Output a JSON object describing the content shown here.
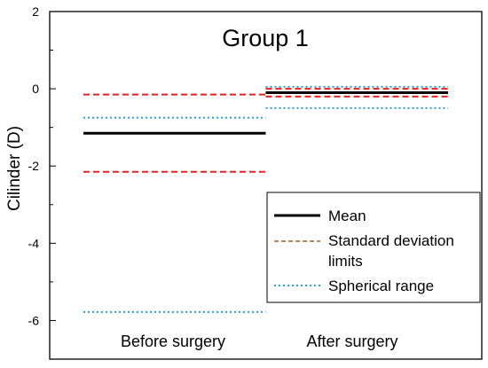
{
  "chart_data": {
    "type": "line",
    "title": "Group 1",
    "ylabel": "Cilinder (D)",
    "xlabel": "",
    "ylim": [
      -7,
      2
    ],
    "yticks": [
      2,
      0,
      -2,
      -4,
      -6
    ],
    "categories": [
      "Before surgery",
      "After surgery"
    ],
    "grid": false,
    "legend_position": "bottom-right",
    "series": [
      {
        "name": "Mean",
        "style": "solid",
        "color": "#000000",
        "values": [
          -1.15,
          -0.1
        ]
      },
      {
        "name": "Standard deviation limits",
        "legend_lines": [
          "Standard deviation",
          "limits"
        ],
        "style": "dashed",
        "color": "#e82020",
        "legend_color": "#b05a1e",
        "upper": [
          -0.15,
          0.0
        ],
        "lower": [
          -2.15,
          -0.2
        ]
      },
      {
        "name": "Spherical range",
        "style": "dotted",
        "color": "#2a9fd6",
        "upper": [
          -0.75,
          0.05
        ],
        "lower": [
          -5.78,
          -0.5
        ]
      }
    ]
  }
}
